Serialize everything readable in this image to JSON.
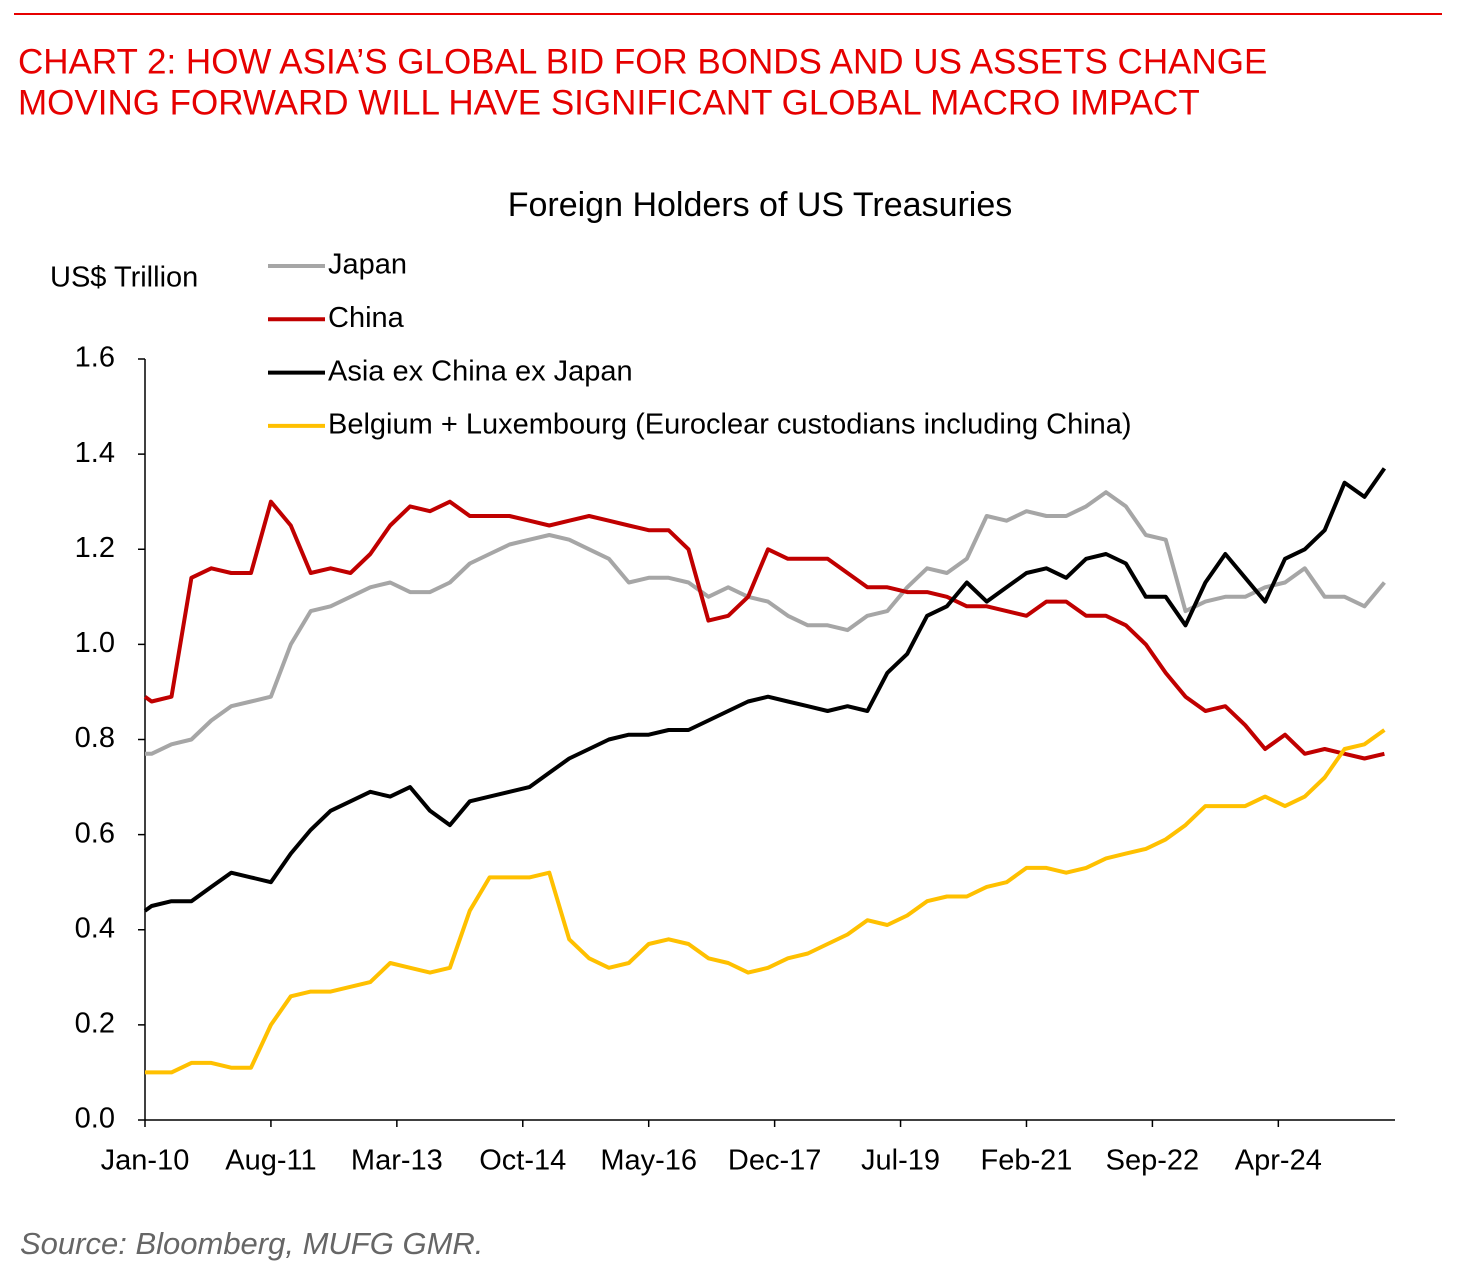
{
  "heading": [
    "CHART 2: HOW ASIA’S GLOBAL BID FOR BONDS AND US ASSETS CHANGE",
    "MOVING FORWARD WILL HAVE SIGNIFICANT GLOBAL MACRO IMPACT"
  ],
  "source": "Source: Bloomberg, MUFG GMR.",
  "chart_data": {
    "type": "line",
    "title": "Foreign Holders of US Treasuries",
    "y_label": "US$ Trillion",
    "x": [
      "Jan-10",
      "Feb-10",
      "May-10",
      "Aug-10",
      "Nov-10",
      "Feb-11",
      "May-11",
      "Aug-11",
      "Nov-11",
      "Feb-12",
      "May-12",
      "Aug-12",
      "Nov-12",
      "Feb-13",
      "May-13",
      "Aug-13",
      "Nov-13",
      "Feb-14",
      "May-14",
      "Aug-14",
      "Nov-14",
      "Feb-15",
      "May-15",
      "Aug-15",
      "Nov-15",
      "Feb-16",
      "May-16",
      "Aug-16",
      "Nov-16",
      "Feb-17",
      "May-17",
      "Aug-17",
      "Nov-17",
      "Feb-18",
      "May-18",
      "Aug-18",
      "Nov-18",
      "Feb-19",
      "May-19",
      "Aug-19",
      "Nov-19",
      "Feb-20",
      "May-20",
      "Aug-20",
      "Nov-20",
      "Feb-21",
      "May-21",
      "Aug-21",
      "Nov-21",
      "Feb-22",
      "May-22",
      "Aug-22",
      "Nov-22",
      "Feb-23",
      "May-23",
      "Aug-23",
      "Nov-23",
      "Feb-24",
      "May-24",
      "Aug-24",
      "Nov-24",
      "Feb-25",
      "May-25",
      "Aug-25"
    ],
    "xlim": [
      "Jan-10",
      "Sep-25"
    ],
    "xticks": [
      "Jan-10",
      "Aug-11",
      "Mar-13",
      "Oct-14",
      "May-16",
      "Dec-17",
      "Jul-19",
      "Feb-21",
      "Sep-22",
      "Apr-24"
    ],
    "ylim": [
      0,
      1.6
    ],
    "yticks": [
      {
        "value": 0,
        "label": "0.0"
      },
      0.2,
      0.4,
      0.6,
      0.8,
      {
        "value": 1,
        "label": "1.0"
      },
      1.2,
      1.4,
      1.6
    ],
    "series": [
      {
        "name": "Japan",
        "color": "#a6a6a6",
        "values": [
          0.77,
          0.77,
          0.79,
          0.8,
          0.84,
          0.87,
          0.88,
          0.89,
          1.0,
          1.07,
          1.08,
          1.1,
          1.12,
          1.13,
          1.11,
          1.11,
          1.13,
          1.17,
          1.19,
          1.21,
          1.22,
          1.23,
          1.22,
          1.2,
          1.18,
          1.13,
          1.14,
          1.14,
          1.13,
          1.1,
          1.12,
          1.1,
          1.09,
          1.06,
          1.04,
          1.04,
          1.03,
          1.06,
          1.07,
          1.12,
          1.16,
          1.15,
          1.18,
          1.27,
          1.26,
          1.28,
          1.27,
          1.27,
          1.29,
          1.32,
          1.29,
          1.23,
          1.22,
          1.07,
          1.09,
          1.1,
          1.1,
          1.12,
          1.13,
          1.16,
          1.1,
          1.1,
          1.08,
          1.13
        ]
      },
      {
        "name": "China",
        "color": "#c00000",
        "values": [
          0.89,
          0.88,
          0.89,
          1.14,
          1.16,
          1.15,
          1.15,
          1.3,
          1.25,
          1.15,
          1.16,
          1.15,
          1.19,
          1.25,
          1.29,
          1.28,
          1.3,
          1.27,
          1.27,
          1.27,
          1.26,
          1.25,
          1.26,
          1.27,
          1.26,
          1.25,
          1.24,
          1.24,
          1.2,
          1.05,
          1.06,
          1.1,
          1.2,
          1.18,
          1.18,
          1.18,
          1.15,
          1.12,
          1.12,
          1.11,
          1.11,
          1.1,
          1.08,
          1.08,
          1.07,
          1.06,
          1.09,
          1.09,
          1.06,
          1.06,
          1.04,
          1.0,
          0.94,
          0.89,
          0.86,
          0.87,
          0.83,
          0.78,
          0.81,
          0.77,
          0.78,
          0.77,
          0.76,
          0.77
        ]
      },
      {
        "name": "Asia ex China ex Japan",
        "color": "#000000",
        "values": [
          0.44,
          0.45,
          0.46,
          0.46,
          0.49,
          0.52,
          0.51,
          0.5,
          0.56,
          0.61,
          0.65,
          0.67,
          0.69,
          0.68,
          0.7,
          0.65,
          0.62,
          0.67,
          0.68,
          0.69,
          0.7,
          0.73,
          0.76,
          0.78,
          0.8,
          0.81,
          0.81,
          0.82,
          0.82,
          0.84,
          0.86,
          0.88,
          0.89,
          0.88,
          0.87,
          0.86,
          0.87,
          0.86,
          0.94,
          0.98,
          1.06,
          1.08,
          1.13,
          1.09,
          1.12,
          1.15,
          1.16,
          1.14,
          1.18,
          1.19,
          1.17,
          1.1,
          1.1,
          1.04,
          1.13,
          1.19,
          1.14,
          1.09,
          1.18,
          1.2,
          1.24,
          1.34,
          1.31,
          1.37
        ]
      },
      {
        "name": "Belgium + Luxembourg (Euroclear custodians including China)",
        "color": "#ffc000",
        "values": [
          0.1,
          0.1,
          0.1,
          0.12,
          0.12,
          0.11,
          0.11,
          0.2,
          0.26,
          0.27,
          0.27,
          0.28,
          0.29,
          0.33,
          0.32,
          0.31,
          0.32,
          0.44,
          0.51,
          0.51,
          0.51,
          0.52,
          0.38,
          0.34,
          0.32,
          0.33,
          0.37,
          0.38,
          0.37,
          0.34,
          0.33,
          0.31,
          0.32,
          0.34,
          0.35,
          0.37,
          0.39,
          0.42,
          0.41,
          0.43,
          0.46,
          0.47,
          0.47,
          0.49,
          0.5,
          0.53,
          0.53,
          0.52,
          0.53,
          0.55,
          0.56,
          0.57,
          0.59,
          0.62,
          0.66,
          0.66,
          0.66,
          0.68,
          0.66,
          0.68,
          0.72,
          0.78,
          0.79,
          0.82
        ]
      }
    ],
    "grid": false
  }
}
